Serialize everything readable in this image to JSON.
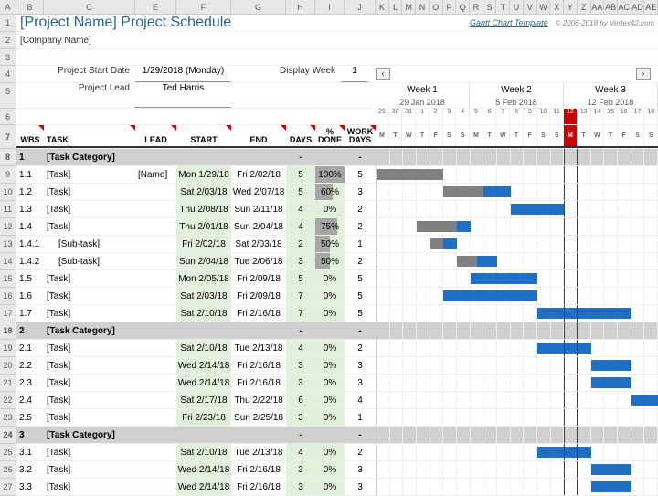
{
  "columns": [
    "A",
    "B",
    "C",
    "E",
    "F",
    "G",
    "H",
    "I",
    "J",
    "K",
    "L",
    "M",
    "N",
    "O",
    "P",
    "Q",
    "R",
    "S",
    "T",
    "U",
    "V",
    "W",
    "X",
    "Y",
    "Z",
    "AA",
    "AB",
    "AC",
    "AD",
    "AE"
  ],
  "title": "[Project Name] Project Schedule",
  "company": "[Company Name]",
  "link_text": "Gantt Chart Template",
  "copyright": "© 2006-2018 by Vertex42.com",
  "meta": {
    "start_label": "Project Start Date",
    "start_value": "1/29/2018 (Monday)",
    "lead_label": "Project Lead",
    "lead_value": "Ted Harris",
    "display_label": "Display Week",
    "display_value": "1"
  },
  "nav": {
    "prev": "‹",
    "next": "›"
  },
  "weeks": [
    {
      "name": "Week 1",
      "date": "29 Jan 2018"
    },
    {
      "name": "Week 2",
      "date": "5 Feb 2018"
    },
    {
      "name": "Week 3",
      "date": "12 Feb 2018"
    }
  ],
  "day_nums": [
    "29",
    "30",
    "31",
    "1",
    "2",
    "3",
    "4",
    "5",
    "6",
    "7",
    "8",
    "9",
    "10",
    "11",
    "12",
    "13",
    "14",
    "15",
    "16",
    "17",
    "18"
  ],
  "day_letters": [
    "M",
    "T",
    "W",
    "T",
    "F",
    "S",
    "S",
    "M",
    "T",
    "W",
    "T",
    "F",
    "S",
    "S",
    "M",
    "T",
    "W",
    "T",
    "F",
    "S",
    "S"
  ],
  "today_index": 14,
  "headers": {
    "wbs": "WBS",
    "task": "TASK",
    "lead": "LEAD",
    "start": "START",
    "end": "END",
    "days": "DAYS",
    "pct": "%\nDONE",
    "work": "WORK\nDAYS"
  },
  "rows": [
    {
      "n": 8,
      "type": "cat",
      "wbs": "1",
      "task": "[Task Category]",
      "days": "-",
      "work": "-"
    },
    {
      "n": 9,
      "type": "data",
      "wbs": "1.1",
      "task": "[Task]",
      "lead": "[Name]",
      "start": "Mon 1/29/18",
      "end": "Fri 2/02/18",
      "days": "5",
      "pct": "100%",
      "pctv": 100,
      "work": "5",
      "bar": {
        "s": 0,
        "e": 5,
        "done": 5
      }
    },
    {
      "n": 10,
      "type": "data",
      "wbs": "1.2",
      "task": "[Task]",
      "start": "Sat 2/03/18",
      "end": "Wed 2/07/18",
      "days": "5",
      "pct": "60%",
      "pctv": 60,
      "work": "3",
      "bar": {
        "s": 5,
        "e": 10,
        "done": 3
      }
    },
    {
      "n": 11,
      "type": "data",
      "wbs": "1.3",
      "task": "[Task]",
      "start": "Thu 2/08/18",
      "end": "Sun 2/11/18",
      "days": "4",
      "pct": "0%",
      "pctv": 0,
      "work": "2",
      "bar": {
        "s": 10,
        "e": 14,
        "done": 0
      }
    },
    {
      "n": 12,
      "type": "data",
      "wbs": "1.4",
      "task": "[Task]",
      "start": "Thu 2/01/18",
      "end": "Sun 2/04/18",
      "days": "4",
      "pct": "75%",
      "pctv": 75,
      "work": "2",
      "bar": {
        "s": 3,
        "e": 7,
        "done": 3
      }
    },
    {
      "n": 13,
      "type": "data",
      "wbs": "1.4.1",
      "task": "[Sub-task]",
      "indent": true,
      "start": "Fri 2/02/18",
      "end": "Sat 2/03/18",
      "days": "2",
      "pct": "50%",
      "pctv": 50,
      "work": "1",
      "bar": {
        "s": 4,
        "e": 6,
        "done": 1
      }
    },
    {
      "n": 14,
      "type": "data",
      "wbs": "1.4.2",
      "task": "[Sub-task]",
      "indent": true,
      "start": "Sun 2/04/18",
      "end": "Tue 2/06/18",
      "days": "3",
      "pct": "50%",
      "pctv": 50,
      "work": "2",
      "bar": {
        "s": 6,
        "e": 9,
        "done": 1.5
      }
    },
    {
      "n": 15,
      "type": "data",
      "wbs": "1.5",
      "task": "[Task]",
      "start": "Mon 2/05/18",
      "end": "Fri 2/09/18",
      "days": "5",
      "pct": "0%",
      "pctv": 0,
      "work": "5",
      "bar": {
        "s": 7,
        "e": 12,
        "done": 0
      }
    },
    {
      "n": 16,
      "type": "data",
      "wbs": "1.6",
      "task": "[Task]",
      "start": "Sat 2/03/18",
      "end": "Fri 2/09/18",
      "days": "7",
      "pct": "0%",
      "pctv": 0,
      "work": "5",
      "bar": {
        "s": 5,
        "e": 12,
        "done": 0
      }
    },
    {
      "n": 17,
      "type": "data",
      "wbs": "1.7",
      "task": "[Task]",
      "start": "Sat 2/10/18",
      "end": "Fri 2/16/18",
      "days": "7",
      "pct": "0%",
      "pctv": 0,
      "work": "5",
      "bar": {
        "s": 12,
        "e": 19,
        "done": 0
      }
    },
    {
      "n": 18,
      "type": "cat",
      "wbs": "2",
      "task": "[Task Category]",
      "days": "-",
      "work": "-"
    },
    {
      "n": 19,
      "type": "data",
      "wbs": "2.1",
      "task": "[Task]",
      "start": "Sat 2/10/18",
      "end": "Tue 2/13/18",
      "days": "4",
      "pct": "0%",
      "pctv": 0,
      "work": "2",
      "bar": {
        "s": 12,
        "e": 16,
        "done": 0
      }
    },
    {
      "n": 20,
      "type": "data",
      "wbs": "2.2",
      "task": "[Task]",
      "start": "Wed 2/14/18",
      "end": "Fri 2/16/18",
      "days": "3",
      "pct": "0%",
      "pctv": 0,
      "work": "3",
      "bar": {
        "s": 16,
        "e": 19,
        "done": 0
      }
    },
    {
      "n": 21,
      "type": "data",
      "wbs": "2.3",
      "task": "[Task]",
      "start": "Wed 2/14/18",
      "end": "Fri 2/16/18",
      "days": "3",
      "pct": "0%",
      "pctv": 0,
      "work": "3",
      "bar": {
        "s": 16,
        "e": 19,
        "done": 0
      }
    },
    {
      "n": 22,
      "type": "data",
      "wbs": "2.4",
      "task": "[Task]",
      "start": "Sat 2/17/18",
      "end": "Thu 2/22/18",
      "days": "6",
      "pct": "0%",
      "pctv": 0,
      "work": "4",
      "bar": {
        "s": 19,
        "e": 21,
        "done": 0
      }
    },
    {
      "n": 23,
      "type": "data",
      "wbs": "2.5",
      "task": "[Task]",
      "start": "Fri 2/23/18",
      "end": "Sun 2/25/18",
      "days": "3",
      "pct": "0%",
      "pctv": 0,
      "work": "1"
    },
    {
      "n": 24,
      "type": "cat",
      "wbs": "3",
      "task": "[Task Category]",
      "days": "-",
      "work": "-"
    },
    {
      "n": 25,
      "type": "data",
      "wbs": "3.1",
      "task": "[Task]",
      "start": "Sat 2/10/18",
      "end": "Tue 2/13/18",
      "days": "4",
      "pct": "0%",
      "pctv": 0,
      "work": "2",
      "bar": {
        "s": 12,
        "e": 16,
        "done": 0
      }
    },
    {
      "n": 26,
      "type": "data",
      "wbs": "3.2",
      "task": "[Task]",
      "start": "Wed 2/14/18",
      "end": "Fri 2/16/18",
      "days": "3",
      "pct": "0%",
      "pctv": 0,
      "work": "3",
      "bar": {
        "s": 16,
        "e": 19,
        "done": 0
      }
    },
    {
      "n": 27,
      "type": "data",
      "wbs": "3.3",
      "task": "[Task]",
      "start": "Wed 2/14/18",
      "end": "Fri 2/16/18",
      "days": "3",
      "pct": "0%",
      "pctv": 0,
      "work": "3",
      "bar": {
        "s": 16,
        "e": 19,
        "done": 0
      }
    }
  ],
  "colors": {
    "bar": "#1f6fc4",
    "done": "#808080",
    "green": "#e2efda",
    "cat": "#d0d0d0",
    "today": "#c00"
  }
}
